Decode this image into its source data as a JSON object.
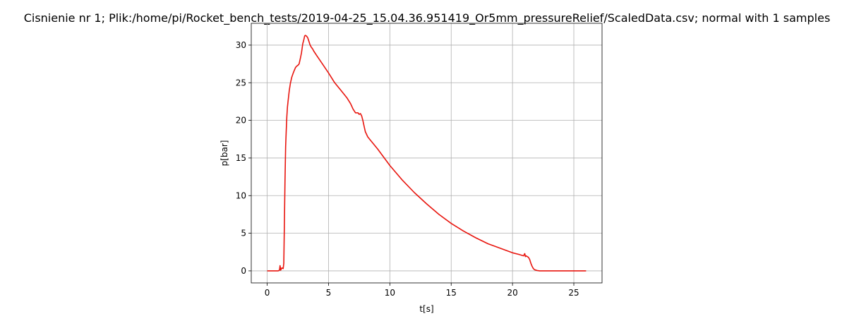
{
  "chart_data": {
    "type": "line",
    "title": "Cisnienie nr 1; Plik:/home/pi/Rocket_bench_tests/2019-04-25_15.04.36.951419_Or5mm_pressureRelief/ScaledData.csv; normal with 1 samples",
    "xlabel": "t[s]",
    "ylabel": "p[bar]",
    "xlim": [
      -1.3,
      27.3
    ],
    "ylim": [
      -1.6,
      32.9
    ],
    "xticks": [
      0,
      5,
      10,
      15,
      20,
      25
    ],
    "yticks": [
      0,
      5,
      10,
      15,
      20,
      25,
      30
    ],
    "grid": true,
    "colors": {
      "line": "#e8150e",
      "grid": "#b0b0b0"
    },
    "series": [
      {
        "x": [
          0,
          0.9,
          1.0,
          1.05,
          1.1,
          1.2,
          1.3,
          1.35,
          1.4,
          1.45,
          1.5,
          1.55,
          1.6,
          1.65,
          1.7,
          1.8,
          1.9,
          2.0,
          2.1,
          2.2,
          2.3,
          2.4,
          2.5,
          2.6,
          2.7,
          2.8,
          2.9,
          2.95,
          3.0,
          3.05,
          3.1,
          3.2,
          3.3,
          3.4,
          3.5,
          3.6,
          3.7,
          3.8,
          4.0,
          4.5,
          5.0,
          5.5,
          6.0,
          6.5,
          6.8,
          7.0,
          7.2,
          7.4,
          7.5,
          7.6,
          7.7,
          7.8,
          7.9,
          8.0,
          8.2,
          8.5,
          9.0,
          10.0,
          11.0,
          12.0,
          13.0,
          14.0,
          15.0,
          16.0,
          17.0,
          18.0,
          19.0,
          20.0,
          20.5,
          20.9,
          21.0,
          21.05,
          21.1,
          21.2,
          21.3,
          21.4,
          21.5,
          21.6,
          21.7,
          21.8,
          22.0,
          22.2,
          22.5,
          23.0,
          24.0,
          25.0,
          26.0
        ],
        "y": [
          0.0,
          0.0,
          0.1,
          0.7,
          0.1,
          0.4,
          0.3,
          1.0,
          6.0,
          12.0,
          16.5,
          18.5,
          20.5,
          21.8,
          22.5,
          24.0,
          25.0,
          25.7,
          26.2,
          26.6,
          27.0,
          27.2,
          27.3,
          27.5,
          28.2,
          29.0,
          30.2,
          30.5,
          30.8,
          31.2,
          31.3,
          31.2,
          31.0,
          30.5,
          30.0,
          29.7,
          29.5,
          29.2,
          28.7,
          27.5,
          26.3,
          25.0,
          24.0,
          23.0,
          22.2,
          21.5,
          21.0,
          21.0,
          20.8,
          20.9,
          20.6,
          20.0,
          19.2,
          18.5,
          17.8,
          17.2,
          16.2,
          14.0,
          12.1,
          10.4,
          8.9,
          7.5,
          6.3,
          5.3,
          4.4,
          3.6,
          3.0,
          2.4,
          2.2,
          2.0,
          2.3,
          1.9,
          2.0,
          1.9,
          1.8,
          1.5,
          1.0,
          0.6,
          0.3,
          0.15,
          0.05,
          0.0,
          0.0,
          0.0,
          0.0,
          0.0,
          0.0
        ]
      }
    ]
  }
}
